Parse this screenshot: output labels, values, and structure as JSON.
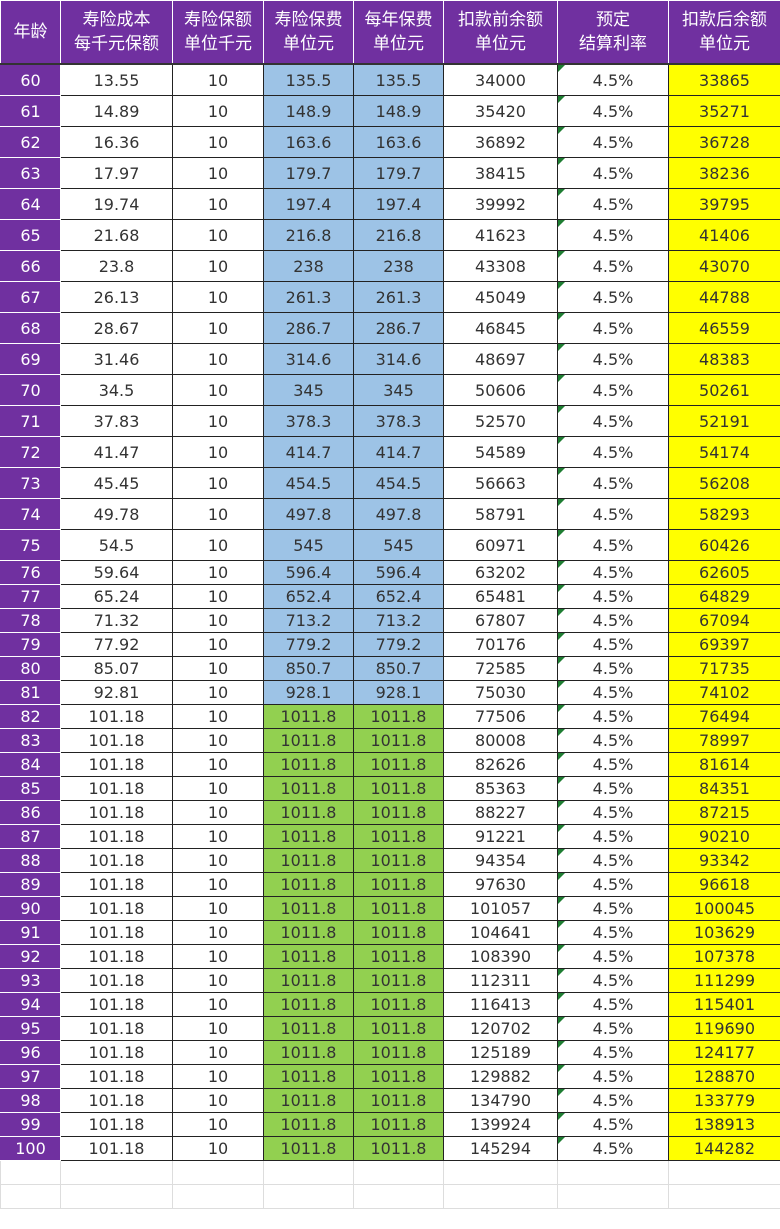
{
  "headers": [
    "年龄",
    "寿险成本\n每千元保额",
    "寿险保额\n单位千元",
    "寿险保费\n单位元",
    "每年保费\n单位元",
    "扣款前余额\n单位元",
    "预定\n结算利率",
    "扣款后余额\n单位元"
  ],
  "colors": {
    "header": "#7030A0",
    "premium_under_82": "#9DC3E6",
    "premium_82_plus": "#92D050",
    "balance_after": "#FFFF00"
  },
  "rows": [
    [
      "60",
      "13.55",
      "10",
      "135.5",
      "135.5",
      "34000",
      "4.5%",
      "33865"
    ],
    [
      "61",
      "14.89",
      "10",
      "148.9",
      "148.9",
      "35420",
      "4.5%",
      "35271"
    ],
    [
      "62",
      "16.36",
      "10",
      "163.6",
      "163.6",
      "36892",
      "4.5%",
      "36728"
    ],
    [
      "63",
      "17.97",
      "10",
      "179.7",
      "179.7",
      "38415",
      "4.5%",
      "38236"
    ],
    [
      "64",
      "19.74",
      "10",
      "197.4",
      "197.4",
      "39992",
      "4.5%",
      "39795"
    ],
    [
      "65",
      "21.68",
      "10",
      "216.8",
      "216.8",
      "41623",
      "4.5%",
      "41406"
    ],
    [
      "66",
      "23.8",
      "10",
      "238",
      "238",
      "43308",
      "4.5%",
      "43070"
    ],
    [
      "67",
      "26.13",
      "10",
      "261.3",
      "261.3",
      "45049",
      "4.5%",
      "44788"
    ],
    [
      "68",
      "28.67",
      "10",
      "286.7",
      "286.7",
      "46845",
      "4.5%",
      "46559"
    ],
    [
      "69",
      "31.46",
      "10",
      "314.6",
      "314.6",
      "48697",
      "4.5%",
      "48383"
    ],
    [
      "70",
      "34.5",
      "10",
      "345",
      "345",
      "50606",
      "4.5%",
      "50261"
    ],
    [
      "71",
      "37.83",
      "10",
      "378.3",
      "378.3",
      "52570",
      "4.5%",
      "52191"
    ],
    [
      "72",
      "41.47",
      "10",
      "414.7",
      "414.7",
      "54589",
      "4.5%",
      "54174"
    ],
    [
      "73",
      "45.45",
      "10",
      "454.5",
      "454.5",
      "56663",
      "4.5%",
      "56208"
    ],
    [
      "74",
      "49.78",
      "10",
      "497.8",
      "497.8",
      "58791",
      "4.5%",
      "58293"
    ],
    [
      "75",
      "54.5",
      "10",
      "545",
      "545",
      "60971",
      "4.5%",
      "60426"
    ],
    [
      "76",
      "59.64",
      "10",
      "596.4",
      "596.4",
      "63202",
      "4.5%",
      "62605"
    ],
    [
      "77",
      "65.24",
      "10",
      "652.4",
      "652.4",
      "65481",
      "4.5%",
      "64829"
    ],
    [
      "78",
      "71.32",
      "10",
      "713.2",
      "713.2",
      "67807",
      "4.5%",
      "67094"
    ],
    [
      "79",
      "77.92",
      "10",
      "779.2",
      "779.2",
      "70176",
      "4.5%",
      "69397"
    ],
    [
      "80",
      "85.07",
      "10",
      "850.7",
      "850.7",
      "72585",
      "4.5%",
      "71735"
    ],
    [
      "81",
      "92.81",
      "10",
      "928.1",
      "928.1",
      "75030",
      "4.5%",
      "74102"
    ],
    [
      "82",
      "101.18",
      "10",
      "1011.8",
      "1011.8",
      "77506",
      "4.5%",
      "76494"
    ],
    [
      "83",
      "101.18",
      "10",
      "1011.8",
      "1011.8",
      "80008",
      "4.5%",
      "78997"
    ],
    [
      "84",
      "101.18",
      "10",
      "1011.8",
      "1011.8",
      "82626",
      "4.5%",
      "81614"
    ],
    [
      "85",
      "101.18",
      "10",
      "1011.8",
      "1011.8",
      "85363",
      "4.5%",
      "84351"
    ],
    [
      "86",
      "101.18",
      "10",
      "1011.8",
      "1011.8",
      "88227",
      "4.5%",
      "87215"
    ],
    [
      "87",
      "101.18",
      "10",
      "1011.8",
      "1011.8",
      "91221",
      "4.5%",
      "90210"
    ],
    [
      "88",
      "101.18",
      "10",
      "1011.8",
      "1011.8",
      "94354",
      "4.5%",
      "93342"
    ],
    [
      "89",
      "101.18",
      "10",
      "1011.8",
      "1011.8",
      "97630",
      "4.5%",
      "96618"
    ],
    [
      "90",
      "101.18",
      "10",
      "1011.8",
      "1011.8",
      "101057",
      "4.5%",
      "100045"
    ],
    [
      "91",
      "101.18",
      "10",
      "1011.8",
      "1011.8",
      "104641",
      "4.5%",
      "103629"
    ],
    [
      "92",
      "101.18",
      "10",
      "1011.8",
      "1011.8",
      "108390",
      "4.5%",
      "107378"
    ],
    [
      "93",
      "101.18",
      "10",
      "1011.8",
      "1011.8",
      "112311",
      "4.5%",
      "111299"
    ],
    [
      "94",
      "101.18",
      "10",
      "1011.8",
      "1011.8",
      "116413",
      "4.5%",
      "115401"
    ],
    [
      "95",
      "101.18",
      "10",
      "1011.8",
      "1011.8",
      "120702",
      "4.5%",
      "119690"
    ],
    [
      "96",
      "101.18",
      "10",
      "1011.8",
      "1011.8",
      "125189",
      "4.5%",
      "124177"
    ],
    [
      "97",
      "101.18",
      "10",
      "1011.8",
      "1011.8",
      "129882",
      "4.5%",
      "128870"
    ],
    [
      "98",
      "101.18",
      "10",
      "1011.8",
      "1011.8",
      "134790",
      "4.5%",
      "133779"
    ],
    [
      "99",
      "101.18",
      "10",
      "1011.8",
      "1011.8",
      "139924",
      "4.5%",
      "138913"
    ],
    [
      "100",
      "101.18",
      "10",
      "1011.8",
      "1011.8",
      "145294",
      "4.5%",
      "144282"
    ]
  ]
}
